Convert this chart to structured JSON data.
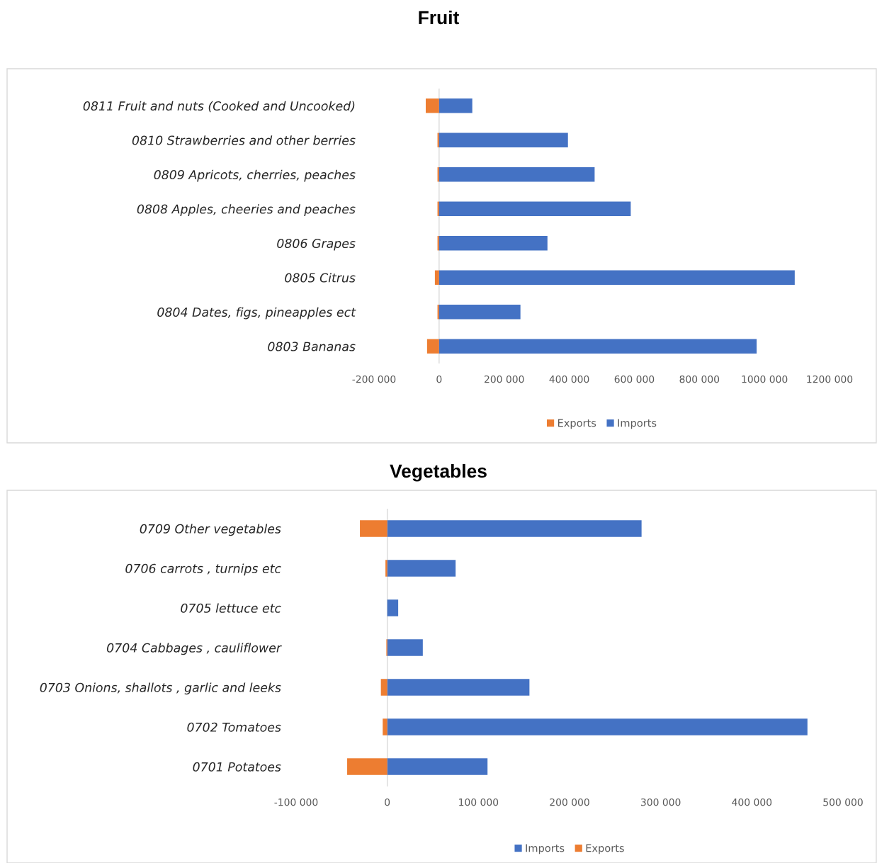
{
  "chart_data": [
    {
      "type": "bar",
      "orientation": "horizontal",
      "title": "Fruit",
      "categories": [
        "0811 Fruit and nuts (Cooked and Uncooked)",
        "0810 Strawberries and other berries",
        "0809 Apricots, cherries, peaches",
        "0808 Apples, cheeries and peaches",
        "0806 Grapes",
        "0805 Citrus",
        "0804 Dates, figs, pineapples ect",
        "0803 Bananas"
      ],
      "series": [
        {
          "name": "Exports",
          "color": "#ed7d31",
          "values": [
            -41000,
            -5000,
            -5000,
            -5000,
            -5000,
            -13000,
            -5000,
            -37000
          ]
        },
        {
          "name": "Imports",
          "color": "#4472c4",
          "values": [
            102000,
            396000,
            478000,
            589000,
            333000,
            1093000,
            250000,
            976000
          ]
        }
      ],
      "xlim": [
        -200000,
        1200000
      ],
      "xticks": [
        {
          "value": -200000,
          "label": "-200 000"
        },
        0,
        {
          "value": 200000,
          "label": "200 000"
        },
        {
          "value": 400000,
          "label": "400 000"
        },
        {
          "value": 600000,
          "label": "600 000"
        },
        {
          "value": 800000,
          "label": "800 000"
        },
        {
          "value": 1000000,
          "label": "1000 000"
        },
        {
          "value": 1200000,
          "label": "1200 000"
        }
      ],
      "stacked": true,
      "grid": false,
      "ref_lines": [
        {
          "axis": "x",
          "value": 0,
          "color": "#d9d9d9"
        }
      ],
      "legend": "bottom"
    },
    {
      "type": "bar",
      "orientation": "horizontal",
      "title": "Vegetables",
      "categories": [
        "0709 Other vegetables",
        "0706 carrots , turnips etc",
        "0705 lettuce etc",
        "0704 Cabbages , cauliflower",
        "0703 Onions, shallots , garlic and leeks",
        "0702 Tomatoes",
        "0701 Potatoes"
      ],
      "series": [
        {
          "name": "Imports",
          "color": "#4472c4",
          "values": [
            279000,
            75000,
            12000,
            39000,
            156000,
            461000,
            110000
          ]
        },
        {
          "name": "Exports",
          "color": "#ed7d31",
          "values": [
            -30000,
            -2000,
            0,
            -1000,
            -7000,
            -5000,
            -44000
          ]
        }
      ],
      "xlim": [
        -100000,
        500000
      ],
      "xticks": [
        {
          "value": -100000,
          "label": "-100 000"
        },
        0,
        {
          "value": 100000,
          "label": "100 000"
        },
        {
          "value": 200000,
          "label": "200 000"
        },
        {
          "value": 300000,
          "label": "300 000"
        },
        {
          "value": 400000,
          "label": "400 000"
        },
        {
          "value": 500000,
          "label": "500 000"
        }
      ],
      "stacked": true,
      "grid": false,
      "ref_lines": [
        {
          "axis": "x",
          "value": 0,
          "color": "#d9d9d9"
        }
      ],
      "legend": "bottom"
    }
  ]
}
